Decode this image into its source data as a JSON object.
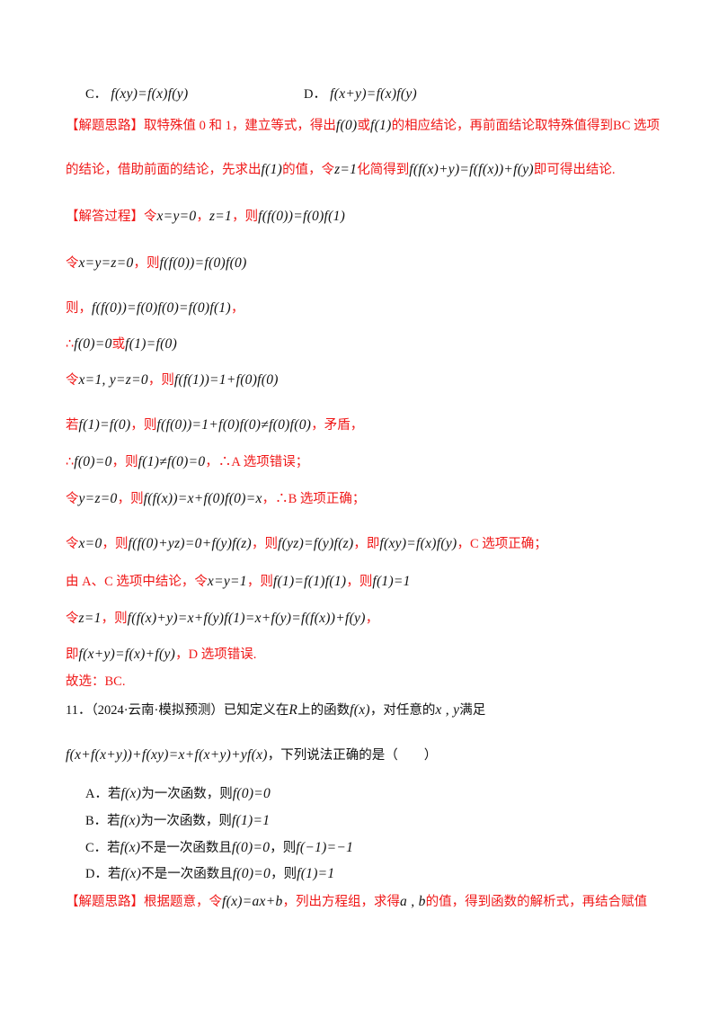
{
  "colors": {
    "analysis_text": "#f01818",
    "body_text": "#111111"
  },
  "lines": [
    {
      "id": "option-c-prev",
      "segments": [
        {
          "text": "C．",
          "style": "black"
        },
        {
          "text": " f(xy)=f(x)f(y)",
          "style": "math"
        }
      ]
    },
    {
      "id": "option-d-prev",
      "segments": [
        {
          "text": "D．",
          "style": "black"
        },
        {
          "text": " f(x+y)=f(x)f(y)",
          "style": "math"
        }
      ]
    },
    {
      "id": "thinking-1",
      "segments": [
        {
          "text": "【解题思路】取特殊值 0 和 1，建立等式，得出",
          "style": "red"
        },
        {
          "text": "f(0)",
          "style": "math"
        },
        {
          "text": "或",
          "style": "red"
        },
        {
          "text": "f(1)",
          "style": "math"
        },
        {
          "text": "的相应结论，再前面结论取特殊值得到BC 选项",
          "style": "red"
        }
      ]
    },
    {
      "id": "thinking-2",
      "segments": [
        {
          "text": "的结论，借助前面的结论，先求出",
          "style": "red"
        },
        {
          "text": "f(1)",
          "style": "math"
        },
        {
          "text": "的值，令",
          "style": "red"
        },
        {
          "text": "z=1",
          "style": "math"
        },
        {
          "text": "化简得到",
          "style": "red"
        },
        {
          "text": "f(f(x)+y)=f(f(x))+f(y)",
          "style": "math"
        },
        {
          "text": "即可得出结论.",
          "style": "red"
        }
      ]
    },
    {
      "id": "solution-1",
      "segments": [
        {
          "text": "【解答过程】令",
          "style": "red"
        },
        {
          "text": "x=y=0",
          "style": "math"
        },
        {
          "text": "，",
          "style": "red"
        },
        {
          "text": "z=1",
          "style": "math"
        },
        {
          "text": "，则",
          "style": "red"
        },
        {
          "text": "f(f(0))=f(0)f(1)",
          "style": "math"
        }
      ]
    },
    {
      "id": "solution-2",
      "segments": [
        {
          "text": "令",
          "style": "red"
        },
        {
          "text": "x=y=z=0",
          "style": "math"
        },
        {
          "text": "，则",
          "style": "red"
        },
        {
          "text": "f(f(0))=f(0)f(0)",
          "style": "math"
        }
      ]
    },
    {
      "id": "solution-3",
      "segments": [
        {
          "text": "则，",
          "style": "red"
        },
        {
          "text": "f(f(0))=f(0)f(0)=f(0)f(1)",
          "style": "math"
        },
        {
          "text": "，",
          "style": "red"
        }
      ]
    },
    {
      "id": "solution-4",
      "segments": [
        {
          "text": "∴",
          "style": "red"
        },
        {
          "text": "f(0)=0",
          "style": "math"
        },
        {
          "text": "或",
          "style": "red"
        },
        {
          "text": "f(1)=f(0)",
          "style": "math"
        }
      ]
    },
    {
      "id": "solution-5",
      "segments": [
        {
          "text": "令",
          "style": "red"
        },
        {
          "text": "x=1, y=z=0",
          "style": "math"
        },
        {
          "text": "，则",
          "style": "red"
        },
        {
          "text": "f(f(1))=1+f(0)f(0)",
          "style": "math"
        }
      ]
    },
    {
      "id": "solution-6",
      "segments": [
        {
          "text": "若",
          "style": "red"
        },
        {
          "text": "f(1)=f(0)",
          "style": "math"
        },
        {
          "text": "，则",
          "style": "red"
        },
        {
          "text": "f(f(0))=1+f(0)f(0)≠f(0)f(0)",
          "style": "math"
        },
        {
          "text": "，矛盾，",
          "style": "red"
        }
      ]
    },
    {
      "id": "solution-7",
      "segments": [
        {
          "text": "∴",
          "style": "red"
        },
        {
          "text": "f(0)=0",
          "style": "math"
        },
        {
          "text": "，则",
          "style": "red"
        },
        {
          "text": "f(1)≠f(0)=0",
          "style": "math"
        },
        {
          "text": "，∴A 选项错误；",
          "style": "red"
        }
      ]
    },
    {
      "id": "solution-8",
      "segments": [
        {
          "text": "令",
          "style": "red"
        },
        {
          "text": "y=z=0",
          "style": "math"
        },
        {
          "text": "，则",
          "style": "red"
        },
        {
          "text": "f(f(x))=x+f(0)f(0)=x",
          "style": "math"
        },
        {
          "text": "，∴B 选项正确；",
          "style": "red"
        }
      ]
    },
    {
      "id": "solution-9",
      "segments": [
        {
          "text": "令",
          "style": "red"
        },
        {
          "text": "x=0",
          "style": "math"
        },
        {
          "text": "，则",
          "style": "red"
        },
        {
          "text": "f(f(0)+yz)=0+f(y)f(z)",
          "style": "math"
        },
        {
          "text": "，则",
          "style": "red"
        },
        {
          "text": "f(yz)=f(y)f(z)",
          "style": "math"
        },
        {
          "text": "，即",
          "style": "red"
        },
        {
          "text": "f(xy)=f(x)f(y)",
          "style": "math"
        },
        {
          "text": "，C 选项正确；",
          "style": "red"
        }
      ]
    },
    {
      "id": "solution-10",
      "segments": [
        {
          "text": "由 A、C 选项中结论，令",
          "style": "red"
        },
        {
          "text": "x=y=1",
          "style": "math"
        },
        {
          "text": "，则",
          "style": "red"
        },
        {
          "text": "f(1)=f(1)f(1)",
          "style": "math"
        },
        {
          "text": "，则",
          "style": "red"
        },
        {
          "text": "f(1)=1",
          "style": "math"
        }
      ]
    },
    {
      "id": "solution-11",
      "segments": [
        {
          "text": "令",
          "style": "red"
        },
        {
          "text": "z=1",
          "style": "math"
        },
        {
          "text": "，则",
          "style": "red"
        },
        {
          "text": "f(f(x)+y)=x+f(y)f(1)=x+f(y)=f(f(x))+f(y)",
          "style": "math"
        },
        {
          "text": "，",
          "style": "red"
        }
      ]
    },
    {
      "id": "solution-12",
      "segments": [
        {
          "text": "即",
          "style": "red"
        },
        {
          "text": "f(x+y)=f(x)+f(y)",
          "style": "math"
        },
        {
          "text": "，D 选项错误.",
          "style": "red"
        }
      ]
    },
    {
      "id": "answer",
      "segments": [
        {
          "text": "故选：BC.",
          "style": "red"
        }
      ]
    },
    {
      "id": "question-11-stem-1",
      "segments": [
        {
          "text": "11．（2024·云南·模拟预测）已知定义在",
          "style": "black"
        },
        {
          "text": "R",
          "style": "math"
        },
        {
          "text": "上的函数",
          "style": "black"
        },
        {
          "text": "f(x)",
          "style": "math"
        },
        {
          "text": "，对任意的",
          "style": "black"
        },
        {
          "text": "x , y",
          "style": "math"
        },
        {
          "text": "满足",
          "style": "black"
        }
      ]
    },
    {
      "id": "question-11-stem-2",
      "segments": [
        {
          "text": "f(x+f(x+y))+f(xy)=x+f(x+y)+yf(x)",
          "style": "math"
        },
        {
          "text": "，下列说法正确的是（　　）",
          "style": "black"
        }
      ]
    },
    {
      "id": "question-11-option-a",
      "segments": [
        {
          "text": "A．若",
          "style": "black"
        },
        {
          "text": "f(x)",
          "style": "math"
        },
        {
          "text": "为一次函数，则",
          "style": "black"
        },
        {
          "text": "f(0)=0",
          "style": "math"
        }
      ]
    },
    {
      "id": "question-11-option-b",
      "segments": [
        {
          "text": "B．若",
          "style": "black"
        },
        {
          "text": "f(x)",
          "style": "math"
        },
        {
          "text": "为一次函数，则",
          "style": "black"
        },
        {
          "text": "f(1)=1",
          "style": "math"
        }
      ]
    },
    {
      "id": "question-11-option-c",
      "segments": [
        {
          "text": "C．若",
          "style": "black"
        },
        {
          "text": "f(x)",
          "style": "math"
        },
        {
          "text": "不是一次函数且",
          "style": "black"
        },
        {
          "text": "f(0)=0",
          "style": "math"
        },
        {
          "text": "，则",
          "style": "black"
        },
        {
          "text": "f(−1)=−1",
          "style": "math"
        }
      ]
    },
    {
      "id": "question-11-option-d",
      "segments": [
        {
          "text": "D．若",
          "style": "black"
        },
        {
          "text": "f(x)",
          "style": "math"
        },
        {
          "text": "不是一次函数且",
          "style": "black"
        },
        {
          "text": "f(0)=0",
          "style": "math"
        },
        {
          "text": "，则",
          "style": "black"
        },
        {
          "text": "f(1)=1",
          "style": "math"
        }
      ]
    },
    {
      "id": "question-11-thinking",
      "segments": [
        {
          "text": "【解题思路】根据题意，令",
          "style": "red"
        },
        {
          "text": "f(x)=ax+b",
          "style": "math"
        },
        {
          "text": "，列出方程组，求得",
          "style": "red"
        },
        {
          "text": "a , b",
          "style": "math"
        },
        {
          "text": "的值，得到函数的解析式，再结合赋值",
          "style": "red"
        }
      ]
    }
  ]
}
